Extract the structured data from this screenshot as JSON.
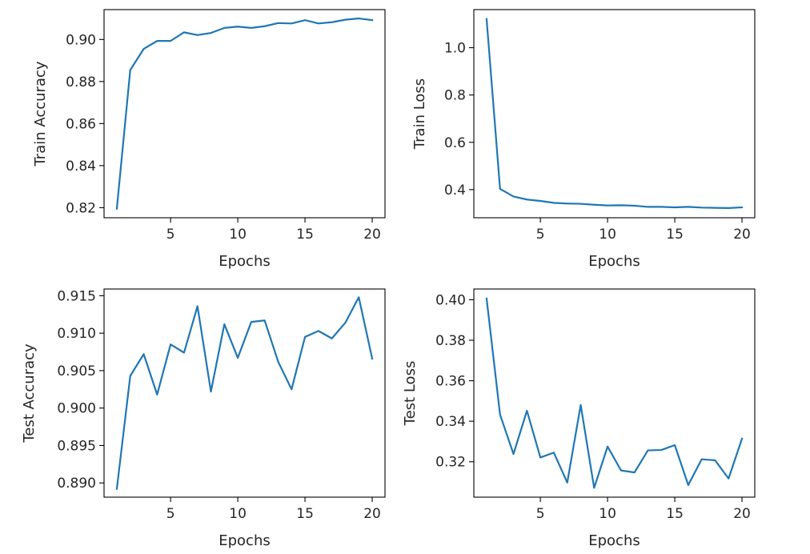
{
  "chart_data": [
    {
      "type": "line",
      "xlabel": "Epochs",
      "ylabel": "Train Accuracy",
      "x": [
        1,
        2,
        3,
        4,
        5,
        6,
        7,
        8,
        9,
        10,
        11,
        12,
        13,
        14,
        15,
        16,
        17,
        18,
        19,
        20
      ],
      "xlim": [
        0.05,
        20.95
      ],
      "ylim": [
        0.8152,
        0.9142
      ],
      "xticks": [
        5,
        10,
        15,
        20
      ],
      "yticks": [
        0.82,
        0.84,
        0.86,
        0.88,
        0.9
      ],
      "ytick_labels": [
        "0.82",
        "0.84",
        "0.86",
        "0.88",
        "0.90"
      ],
      "series": [
        {
          "color": "#1f77b4",
          "values": [
            0.8195,
            0.8855,
            0.8955,
            0.8993,
            0.8993,
            0.9034,
            0.9021,
            0.9031,
            0.9055,
            0.9061,
            0.9055,
            0.9063,
            0.9078,
            0.9076,
            0.9092,
            0.9076,
            0.9082,
            0.9094,
            0.91,
            0.9092
          ]
        }
      ]
    },
    {
      "type": "line",
      "xlabel": "Epochs",
      "ylabel": "Train Loss",
      "x": [
        1,
        2,
        3,
        4,
        5,
        6,
        7,
        8,
        9,
        10,
        11,
        12,
        13,
        14,
        15,
        16,
        17,
        18,
        19,
        20
      ],
      "xlim": [
        0.05,
        20.95
      ],
      "ylim": [
        0.281,
        1.161
      ],
      "xticks": [
        5,
        10,
        15,
        20
      ],
      "yticks": [
        0.4,
        0.6,
        0.8,
        1.0
      ],
      "ytick_labels": [
        "0.4",
        "0.6",
        "0.8",
        "1.0"
      ],
      "series": [
        {
          "color": "#1f77b4",
          "values": [
            1.121,
            0.403,
            0.371,
            0.358,
            0.352,
            0.344,
            0.341,
            0.34,
            0.336,
            0.333,
            0.334,
            0.332,
            0.327,
            0.327,
            0.325,
            0.327,
            0.324,
            0.323,
            0.322,
            0.325
          ]
        }
      ]
    },
    {
      "type": "line",
      "xlabel": "Epochs",
      "ylabel": "Test Accuracy",
      "x": [
        1,
        2,
        3,
        4,
        5,
        6,
        7,
        8,
        9,
        10,
        11,
        12,
        13,
        14,
        15,
        16,
        17,
        18,
        19,
        20
      ],
      "xlim": [
        0.05,
        20.95
      ],
      "ylim": [
        0.8881,
        0.9159
      ],
      "xticks": [
        5,
        10,
        15,
        20
      ],
      "yticks": [
        0.89,
        0.895,
        0.9,
        0.905,
        0.91,
        0.915
      ],
      "ytick_labels": [
        "0.890",
        "0.895",
        "0.900",
        "0.905",
        "0.910",
        "0.915"
      ],
      "series": [
        {
          "color": "#1f77b4",
          "values": [
            0.8892,
            0.9043,
            0.9072,
            0.9018,
            0.9085,
            0.9074,
            0.9136,
            0.9022,
            0.9112,
            0.9067,
            0.9115,
            0.9117,
            0.9062,
            0.9025,
            0.9095,
            0.9103,
            0.9093,
            0.9114,
            0.9148,
            0.9066
          ]
        }
      ]
    },
    {
      "type": "line",
      "xlabel": "Epochs",
      "ylabel": "Test Loss",
      "x": [
        1,
        2,
        3,
        4,
        5,
        6,
        7,
        8,
        9,
        10,
        11,
        12,
        13,
        14,
        15,
        16,
        17,
        18,
        19,
        20
      ],
      "xlim": [
        0.05,
        20.95
      ],
      "ylim": [
        0.3025,
        0.4053
      ],
      "xticks": [
        5,
        10,
        15,
        20
      ],
      "yticks": [
        0.32,
        0.34,
        0.36,
        0.38,
        0.4
      ],
      "ytick_labels": [
        "0.32",
        "0.34",
        "0.36",
        "0.38",
        "0.40"
      ],
      "series": [
        {
          "color": "#1f77b4",
          "values": [
            0.4006,
            0.3433,
            0.3238,
            0.3452,
            0.3221,
            0.3245,
            0.3097,
            0.348,
            0.3071,
            0.3275,
            0.3157,
            0.3147,
            0.3256,
            0.3258,
            0.3282,
            0.3085,
            0.3212,
            0.3207,
            0.3117,
            0.3314
          ]
        }
      ]
    }
  ]
}
